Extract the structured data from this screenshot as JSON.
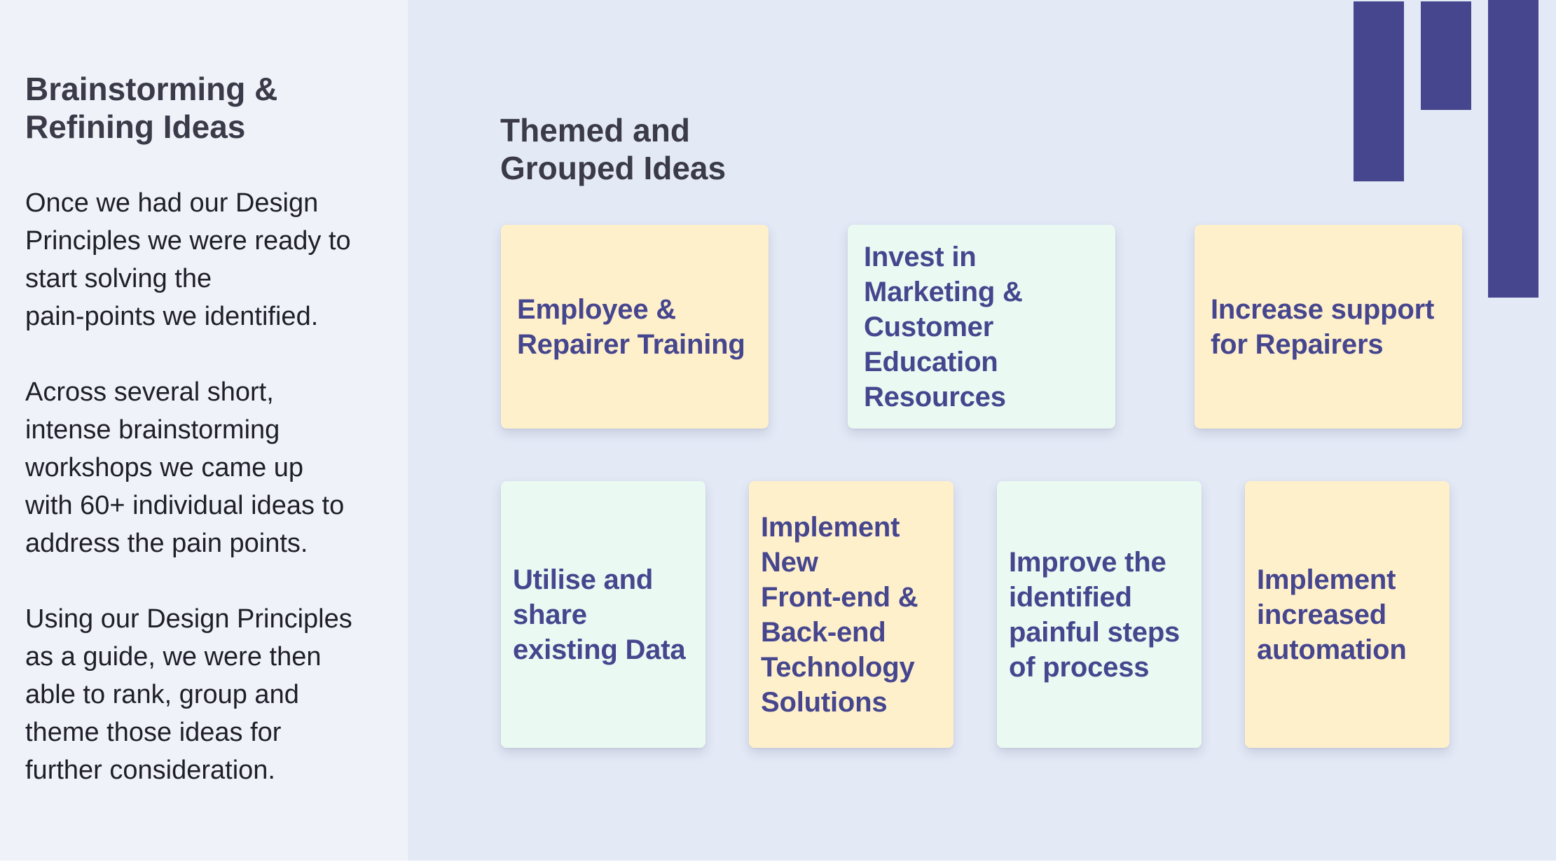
{
  "left": {
    "title": "Brainstorming &\nRefining Ideas",
    "paragraphs": [
      "Once we had our Design\nPrinciples we were ready to\nstart solving the\npain-points we identified.",
      "Across several short,\nintense brainstorming\nworkshops we came up\nwith 60+ individual ideas to\naddress the pain points.",
      "Using our Design Principles\nas a guide, we were then\nable to rank, group and\ntheme those ideas for\nfurther consideration."
    ]
  },
  "main": {
    "title": "Themed and\nGrouped Ideas",
    "cards": [
      {
        "label": "Employee &\nRepairer Training",
        "color": "#FFF0CC"
      },
      {
        "label": "Invest in\nMarketing &\nCustomer\nEducation\nResources",
        "color": "#EAF9F1"
      },
      {
        "label": "Increase support\nfor Repairers",
        "color": "#FFF0CC"
      },
      {
        "label": "Utilise and\nshare\nexisting Data",
        "color": "#EAF9F1"
      },
      {
        "label": "Implement\nNew\nFront-end &\nBack-end\nTechnology\nSolutions",
        "color": "#FFF0CC"
      },
      {
        "label": "Improve the\nidentified\npainful steps\nof process",
        "color": "#EAF9F1"
      },
      {
        "label": "Implement\nincreased\nautomation",
        "color": "#FFF0CC"
      }
    ]
  },
  "colors": {
    "accent": "#45468E",
    "left_bg": "#F0F2FA",
    "right_bg": "#E3E9F5",
    "text_dark": "#3A3A48"
  }
}
